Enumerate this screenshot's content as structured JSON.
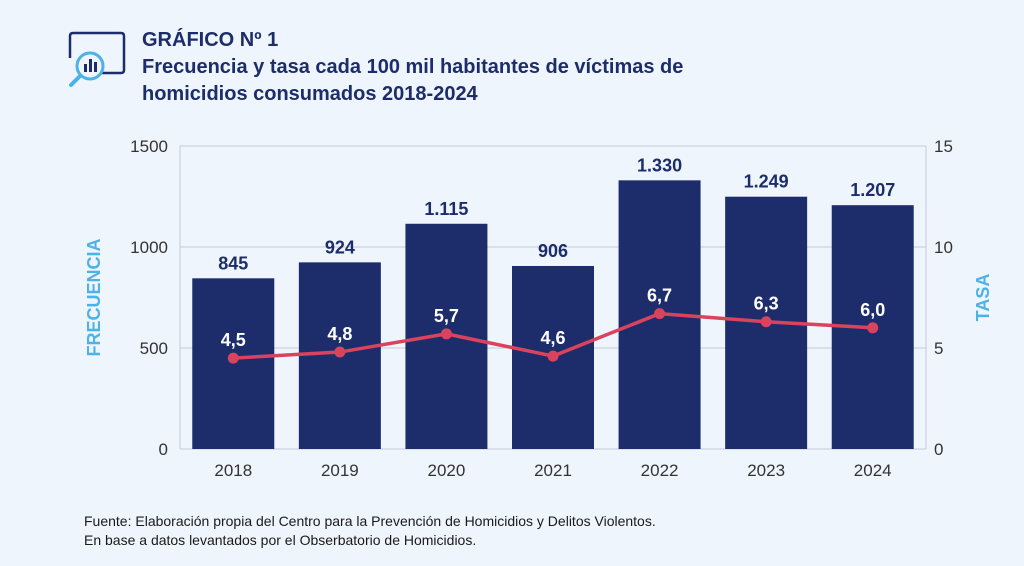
{
  "header": {
    "label": "GRÁFICO Nº 1",
    "title": "Frecuencia y tasa cada 100 mil habitantes de víctimas de homicidios consumados 2018-2024",
    "icon": "chart-magnifier-icon"
  },
  "chart_data": {
    "type": "bar",
    "categories": [
      "2018",
      "2019",
      "2020",
      "2021",
      "2022",
      "2023",
      "2024"
    ],
    "series": [
      {
        "name": "FRECUENCIA",
        "type": "bar",
        "axis": "left",
        "values": [
          845,
          924,
          1115,
          906,
          1330,
          1249,
          1207
        ],
        "labels": [
          "845",
          "924",
          "1.115",
          "906",
          "1.330",
          "1.249",
          "1.207"
        ],
        "color": "#1d2d6b"
      },
      {
        "name": "TASA",
        "type": "line",
        "axis": "right",
        "values": [
          4.5,
          4.8,
          5.7,
          4.6,
          6.7,
          6.3,
          6.0
        ],
        "labels": [
          "4,5",
          "4,8",
          "5,7",
          "4,6",
          "6,7",
          "6,3",
          "6,0"
        ],
        "color": "#d9435e"
      }
    ],
    "ylabel": "FRECUENCIA",
    "y2label": "TASA",
    "ylim": [
      0,
      1500
    ],
    "y2lim": [
      0,
      15
    ],
    "yticks": [
      "0",
      "500",
      "1000",
      "1500"
    ],
    "y2ticks": [
      "0",
      "5",
      "10",
      "15"
    ],
    "grid": true,
    "axis_title_color": "#4db2e8"
  },
  "source": {
    "line1": "Fuente: Elaboración propia del Centro para la Prevención de Homicidios y Delitos Violentos.",
    "line2": "En base a datos levantados por el Obserbatorio de Homicidios."
  }
}
